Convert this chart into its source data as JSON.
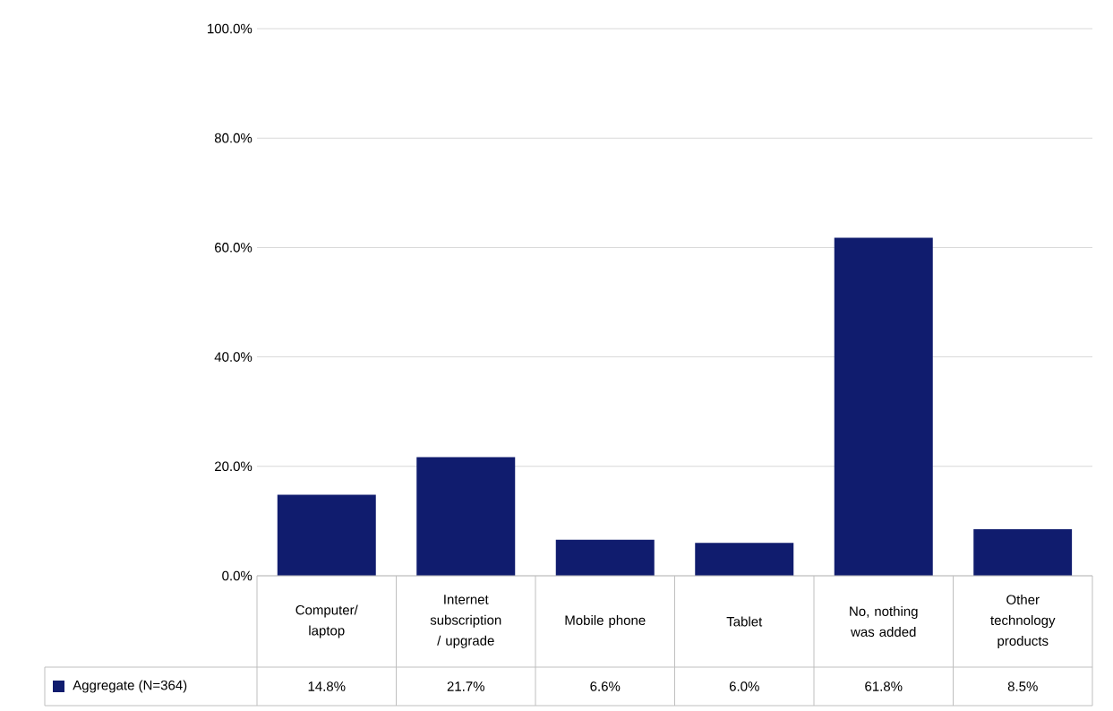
{
  "chart_data": {
    "type": "bar",
    "categories": [
      "Computer/ laptop",
      "Internet subscription / upgrade",
      "Mobile phone",
      "Tablet",
      "No, nothing was added",
      "Other technology products"
    ],
    "series": [
      {
        "name": "Aggregate (N=364)",
        "color": "#101c6e",
        "values": [
          14.8,
          21.7,
          6.6,
          6.0,
          61.8,
          8.5
        ],
        "value_labels": [
          "14.8%",
          "21.7%",
          "6.6%",
          "6.0%",
          "61.8%",
          "8.5%"
        ]
      }
    ],
    "ylim": [
      0,
      100
    ],
    "yticks": [
      {
        "value": 0,
        "label": "0.0%"
      },
      {
        "value": 20,
        "label": "20.0%"
      },
      {
        "value": 40,
        "label": "40.0%"
      },
      {
        "value": 60,
        "label": "60.0%"
      },
      {
        "value": 80,
        "label": "80.0%"
      },
      {
        "value": 100,
        "label": "100.0%"
      }
    ],
    "grid": "y",
    "legend": "bottom"
  }
}
